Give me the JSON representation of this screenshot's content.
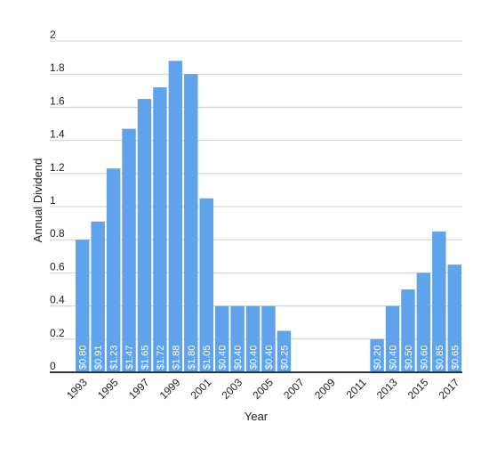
{
  "chart_data": {
    "type": "bar",
    "title": "",
    "xlabel": "Year",
    "ylabel": "Annual Dividend",
    "ylim": [
      0,
      2
    ],
    "yticks": [
      {
        "value": 0,
        "label": "0"
      },
      {
        "value": 0.2,
        "label": "0.2"
      },
      {
        "value": 0.4,
        "label": "0.4"
      },
      {
        "value": 0.6,
        "label": "0.6"
      },
      {
        "value": 0.8,
        "label": "0.8"
      },
      {
        "value": 1,
        "label": "1"
      },
      {
        "value": 1.2,
        "label": "1.2"
      },
      {
        "value": 1.4,
        "label": "1.4"
      },
      {
        "value": 1.6,
        "label": "1.6"
      },
      {
        "value": 1.8,
        "label": "1.8"
      },
      {
        "value": 2,
        "label": "2"
      }
    ],
    "categories": [
      "1993",
      "1994",
      "1995",
      "1996",
      "1997",
      "1998",
      "1999",
      "2000",
      "2001",
      "2002",
      "2003",
      "2004",
      "2005",
      "2006",
      "2007",
      "2008",
      "2009",
      "2010",
      "2011",
      "2012",
      "2013",
      "2014",
      "2015",
      "2016",
      "2017"
    ],
    "xtick_labels": [
      "1993",
      "1995",
      "1997",
      "1999",
      "2001",
      "2003",
      "2005",
      "2007",
      "2009",
      "2011",
      "2013",
      "2015",
      "2017"
    ],
    "values": [
      0.8,
      0.91,
      1.23,
      1.47,
      1.65,
      1.72,
      1.88,
      1.8,
      1.05,
      0.4,
      0.4,
      0.4,
      0.4,
      0.25,
      0,
      0,
      0,
      0,
      0,
      0.2,
      0.4,
      0.5,
      0.6,
      0.85,
      0.65
    ],
    "data_labels": [
      "$0.80",
      "$0.91",
      "$1.23",
      "$1.47",
      "$1.65",
      "$1.72",
      "$1.88",
      "$1.80",
      "$1.05",
      "$0.40",
      "$0.40",
      "$0.40",
      "$0.40",
      "$0.25",
      "",
      "",
      "",
      "",
      "",
      "$0.20",
      "$0.40",
      "$0.50",
      "$0.60",
      "$0.85",
      "$0.65"
    ],
    "bar_color": "#5ea3ec",
    "grid": true,
    "legend": "none"
  }
}
